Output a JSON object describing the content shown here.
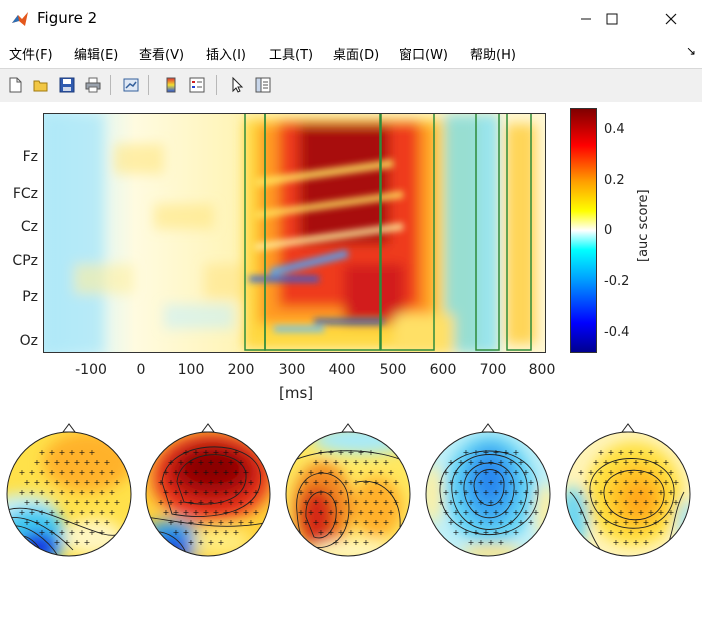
{
  "window": {
    "title": "Figure 2",
    "minimize": "—",
    "maximize": "☐",
    "close": "✕"
  },
  "menubar": {
    "items": [
      "文件(F)",
      "编辑(E)",
      "查看(V)",
      "插入(I)",
      "工具(T)",
      "桌面(D)",
      "窗口(W)",
      "帮助(H)"
    ],
    "dock_arrow": "↘"
  },
  "toolbar": {
    "buttons": [
      "new-figure",
      "open-file",
      "save-figure",
      "print-figure",
      "link-plot",
      "insert-colorbar",
      "insert-legend",
      "edit-plot",
      "property-inspector"
    ]
  },
  "plot": {
    "y_labels": [
      "Fz",
      "FCz",
      "Cz",
      "CPz",
      "Pz",
      "Oz"
    ],
    "x_ticks": [
      "-100",
      "0",
      "100",
      "200",
      "300",
      "400",
      "500",
      "600",
      "700",
      "800"
    ],
    "x_label": "[ms]",
    "colorbar_ticks": [
      "0.4",
      "0.2",
      "0",
      "-0.2",
      "-0.4"
    ],
    "colorbar_label": "[auc score]",
    "colors": {
      "box": "#2e8b3a",
      "deep_red": "#8b0000",
      "red": "#e8261e",
      "yellow": "#ffe23a",
      "cyan": "#8fe8f2",
      "blue": "#1060e0"
    }
  },
  "topomaps": {
    "count": 5,
    "patterns": [
      "frontal-positive-occipital-negative",
      "strong-frontal-positive",
      "left-parietal-positive",
      "central-negative",
      "central-positive"
    ]
  }
}
